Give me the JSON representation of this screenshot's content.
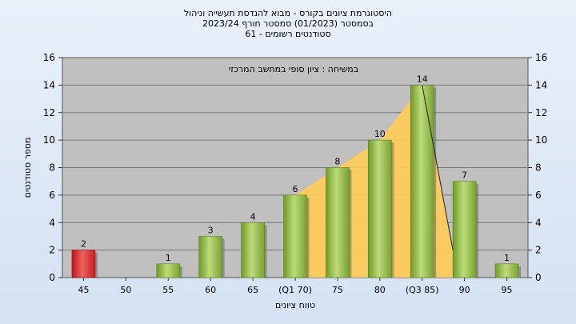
{
  "chart_data": {
    "type": "bar",
    "title_lines": [
      "היסטוגרמת ציונים בקורס - מבוא להנדסת תעשייה וניהול",
      "בסמסטר  (01/2023)  סמסטר חורף  2023/24",
      "סטודנטים רשומים - 61"
    ],
    "annotation": "במשיחה : ציון סופי במחשב המרכזי",
    "xlabel": "טווח ציונים",
    "ylabel": "מספר סטודנטים",
    "ylim": [
      0,
      16
    ],
    "yticks": [
      0,
      2,
      4,
      6,
      8,
      10,
      12,
      14,
      16
    ],
    "grid": true,
    "categories": [
      "45",
      "50",
      "55",
      "60",
      "65",
      "(Q1 70)",
      "75",
      "80",
      "(Q3 85)",
      "90",
      "95"
    ],
    "values": [
      2,
      0,
      1,
      3,
      4,
      6,
      8,
      10,
      14,
      7,
      1
    ],
    "data_labels": [
      "2",
      "",
      "1",
      "3",
      "4",
      "6",
      "8",
      "10",
      "14",
      "7",
      "1"
    ],
    "bar_colors": [
      "red",
      "green",
      "green",
      "green",
      "green",
      "green",
      "green",
      "green",
      "green",
      "green",
      "green"
    ],
    "shaded_region": {
      "from": "(Q1 70)",
      "to": "(Q3 85)",
      "color": "#ffcc55"
    },
    "colors": {
      "plot_bg": "#c0c0c0",
      "green_bar": "#8ab33f",
      "red_bar": "#d42a2a",
      "band": "#ffcc55"
    }
  }
}
